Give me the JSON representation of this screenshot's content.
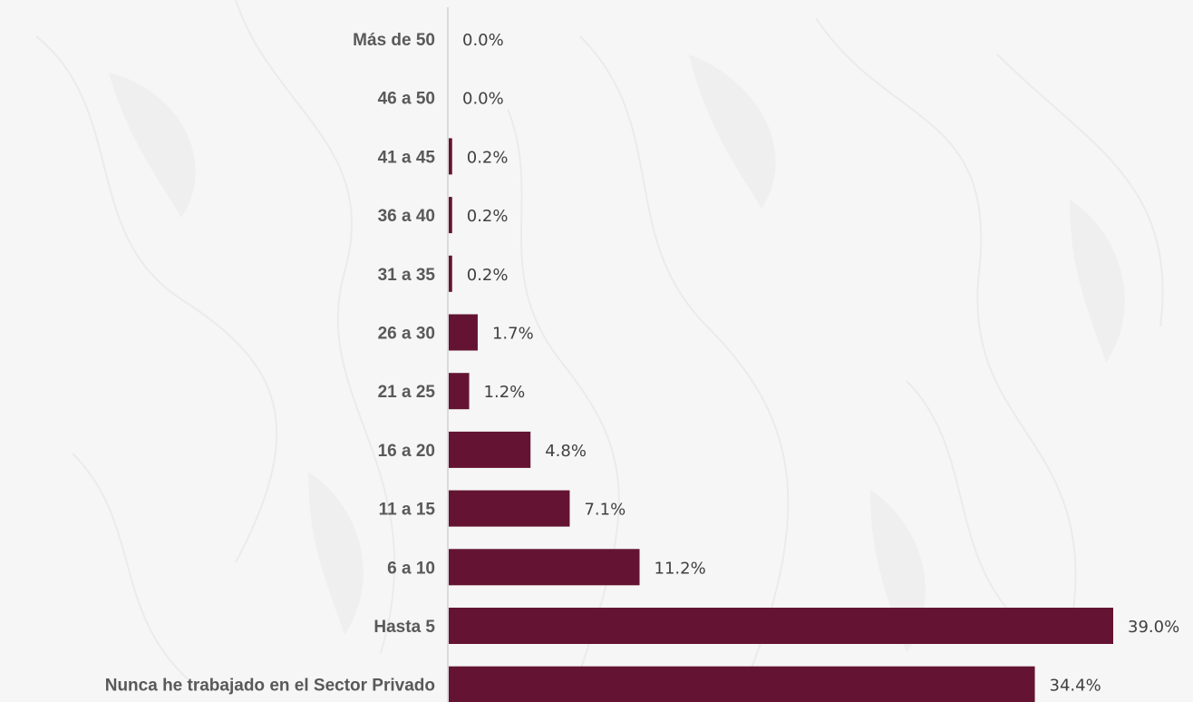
{
  "chart_data": {
    "type": "bar",
    "orientation": "horizontal",
    "categories": [
      "Más de 50",
      "46 a 50",
      "41 a 45",
      "36 a 40",
      "31 a 35",
      "26 a 30",
      "21 a 25",
      "16 a 20",
      "11 a 15",
      "6 a 10",
      "Hasta 5",
      "Nunca he trabajado en el Sector Privado"
    ],
    "values": [
      0.0,
      0.0,
      0.2,
      0.2,
      0.2,
      1.7,
      1.2,
      4.8,
      7.1,
      11.2,
      39.0,
      34.4
    ],
    "value_labels": [
      "0.0%",
      "0.0%",
      "0.2%",
      "0.2%",
      "0.2%",
      "1.7%",
      "1.2%",
      "4.8%",
      "7.1%",
      "11.2%",
      "39.0%",
      "34.4%"
    ],
    "unit": "%",
    "title": "",
    "xlabel": "",
    "ylabel": "",
    "xlim": [
      0,
      39.0
    ],
    "grid": false,
    "legend": "none",
    "bar_color": "#641432",
    "axis_color": "#d0d0d0",
    "background_color": "#f6f6f6"
  }
}
